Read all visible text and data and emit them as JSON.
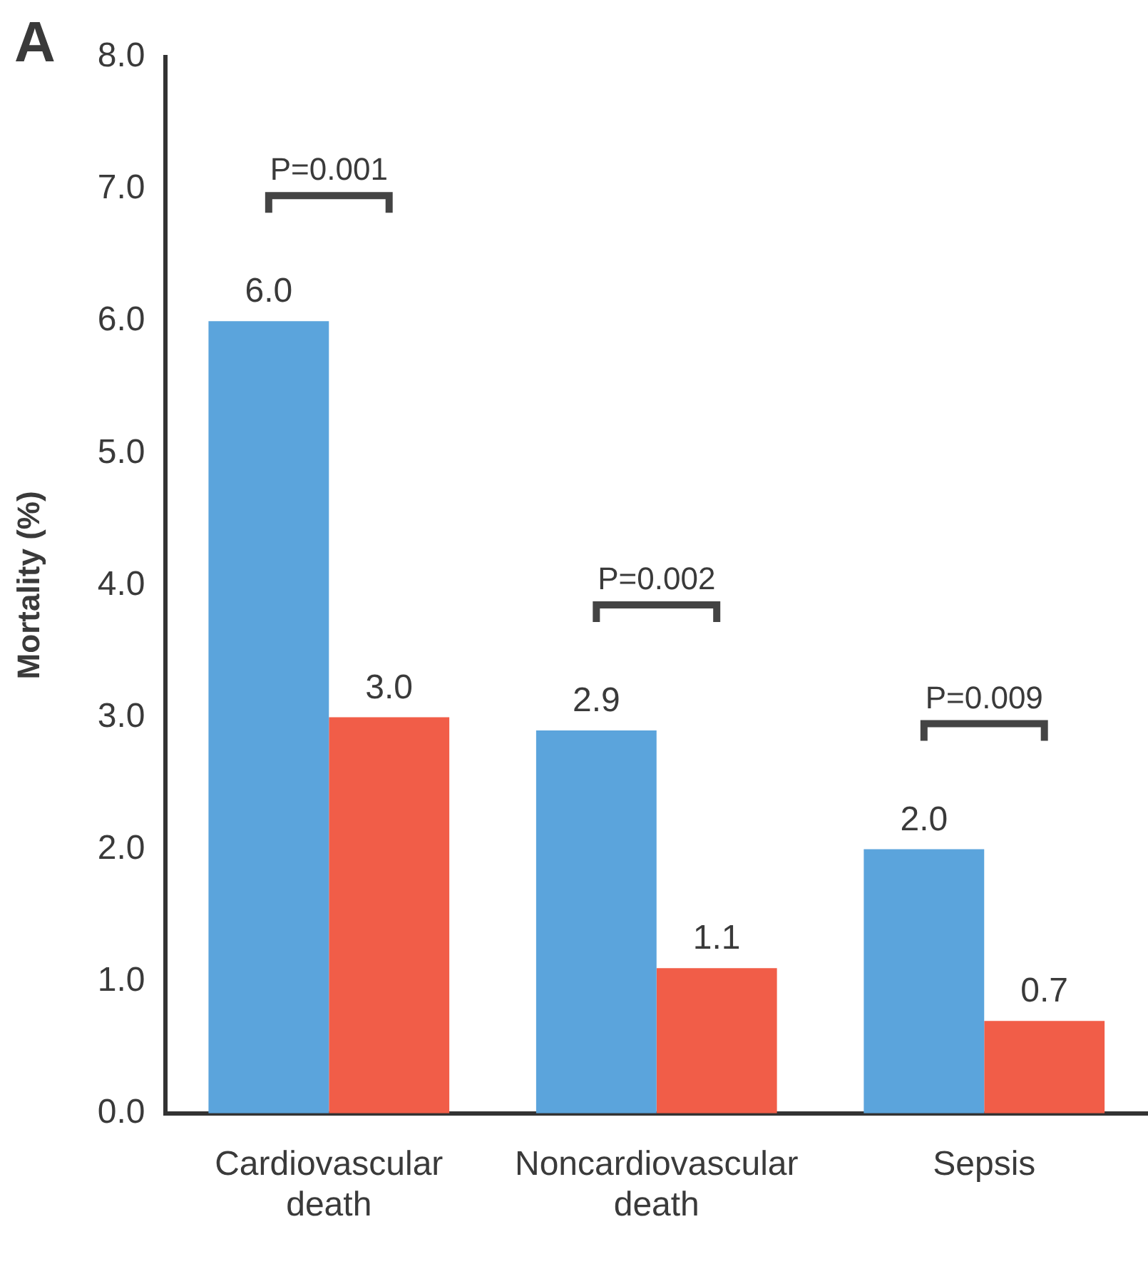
{
  "chart_data": {
    "type": "bar",
    "ylabel": "Mortality (%)",
    "categories": [
      "Cardiovascular death",
      "Noncardiovascular death",
      "Sepsis"
    ],
    "series": [
      {
        "color": "#5ba4dc",
        "values": [
          6.0,
          2.9,
          2.0
        ],
        "value_labels": [
          "6.0",
          "2.9",
          "2.0"
        ]
      },
      {
        "color": "#f15d48",
        "values": [
          3.0,
          1.1,
          0.7
        ],
        "value_labels": [
          "3.0",
          "1.1",
          "0.7"
        ]
      }
    ],
    "ylim": [
      0,
      8
    ],
    "yticks": [
      {
        "value": 0,
        "label": "0.0"
      },
      {
        "value": 1,
        "label": "1.0"
      },
      {
        "value": 2,
        "label": "2.0"
      },
      {
        "value": 3,
        "label": "3.0"
      },
      {
        "value": 4,
        "label": "4.0"
      },
      {
        "value": 5,
        "label": "5.0"
      },
      {
        "value": 6,
        "label": "6.0"
      },
      {
        "value": 7,
        "label": "7.0"
      },
      {
        "value": 8,
        "label": "8.0"
      }
    ],
    "grid": false,
    "legend": false,
    "annotations": [
      "A",
      "P=0.001",
      "P=0.002",
      "P=0.009"
    ]
  }
}
